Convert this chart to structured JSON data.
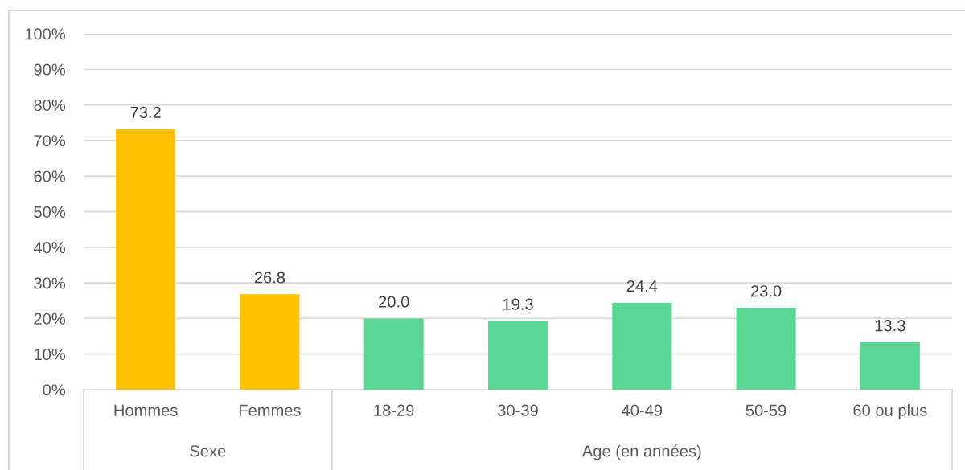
{
  "chart_data": {
    "type": "bar",
    "categories": [
      "Hommes",
      "Femmes",
      "18-29",
      "30-39",
      "40-49",
      "50-59",
      "60 ou plus"
    ],
    "values": [
      73.2,
      26.8,
      20.0,
      19.3,
      24.4,
      23.0,
      13.3
    ],
    "colors": [
      "#ffc000",
      "#ffc000",
      "#5ad795",
      "#5ad795",
      "#5ad795",
      "#5ad795",
      "#5ad795"
    ],
    "value_labels": [
      "73.2",
      "26.8",
      "20.0",
      "19.3",
      "24.4",
      "23.0",
      "13.3"
    ],
    "ylim": [
      0,
      100
    ],
    "yticks": [
      {
        "value": 0,
        "label": "0%"
      },
      {
        "value": 10,
        "label": "10%"
      },
      {
        "value": 20,
        "label": "20%"
      },
      {
        "value": 30,
        "label": "30%"
      },
      {
        "value": 40,
        "label": "40%"
      },
      {
        "value": 50,
        "label": "50%"
      },
      {
        "value": 60,
        "label": "60%"
      },
      {
        "value": 70,
        "label": "70%"
      },
      {
        "value": 80,
        "label": "80%"
      },
      {
        "value": 90,
        "label": "90%"
      },
      {
        "value": 100,
        "label": "100%"
      }
    ],
    "grid": "y",
    "annotations": [
      "Sexe",
      "Age (en années)"
    ]
  }
}
